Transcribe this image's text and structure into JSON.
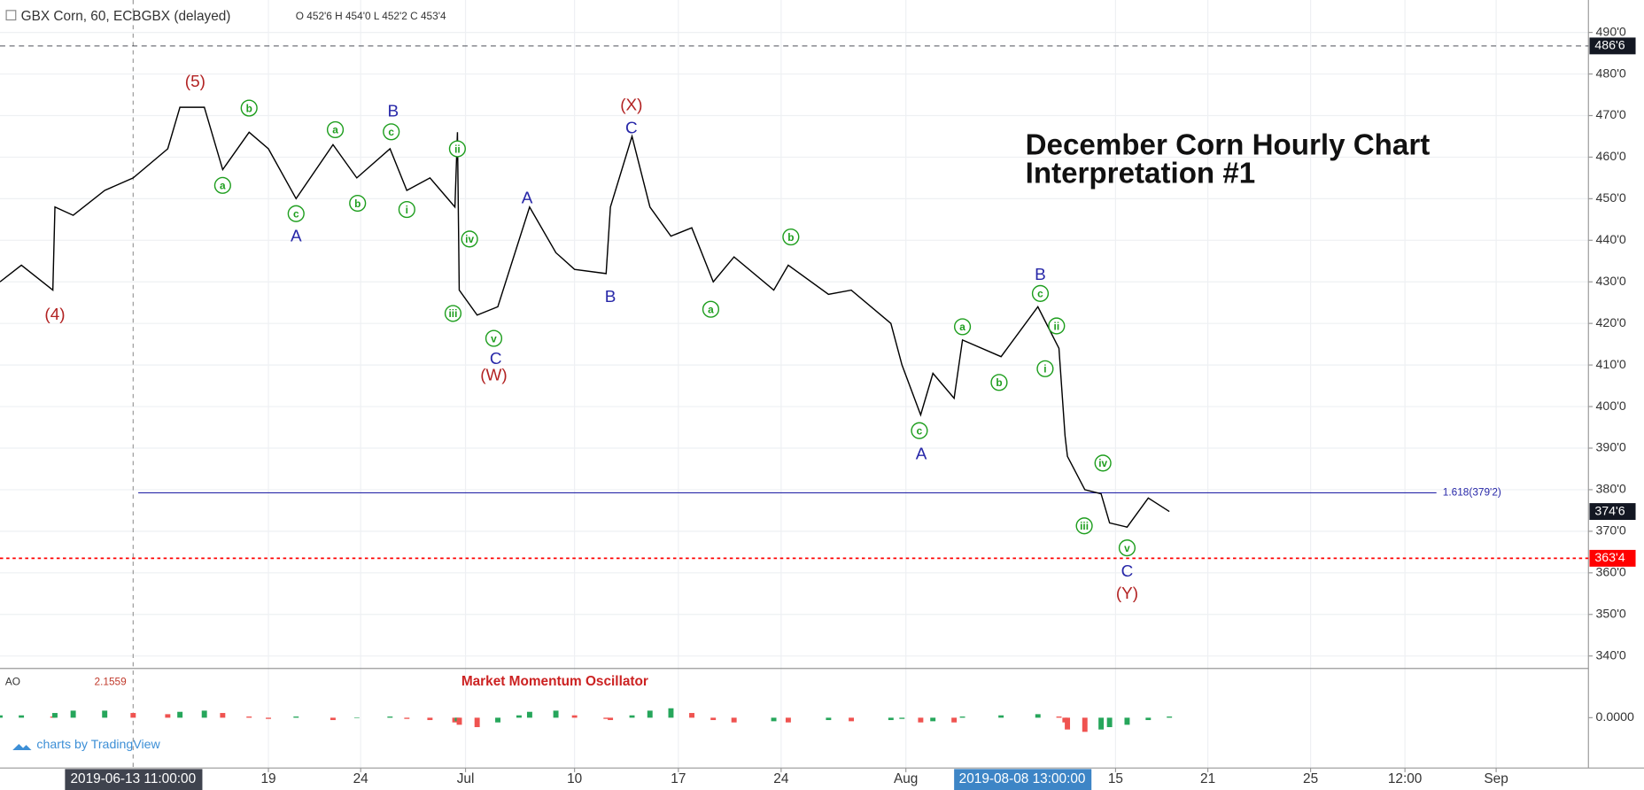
{
  "header": {
    "symbol": "GBX Corn, 60, ECBGBX (delayed)",
    "ohlc": "O 452'6 H 454'0 L 452'2 C 453'4"
  },
  "chart_data": [
    {
      "type": "line",
      "title": "December Corn Hourly Chart",
      "subtitle": "Interpretation #1",
      "color": "#000000",
      "x": [
        "2019-06-08 00:00",
        "2019-06-08 21:00",
        "2019-06-10 04:00",
        "2019-06-10 06:00",
        "2019-06-11 00:00",
        "2019-06-12 07:00",
        "2019-06-13 11:00",
        "2019-06-14 21:00",
        "2019-06-15 09:00",
        "2019-06-16 09:00",
        "2019-06-17 03:00",
        "2019-06-18 05:00",
        "2019-06-19 00:00",
        "2019-06-20 12:00",
        "2019-06-22 12:00",
        "2019-06-23 19:00",
        "2019-06-25 23:00",
        "2019-06-27 02:00",
        "2019-06-28 15:00",
        "2019-06-30 07:00",
        "2019-06-30 11:00",
        "2019-06-30 14:00",
        "2019-07-01 23:00",
        "2019-07-03 16:00",
        "2019-07-05 10:00",
        "2019-07-06 07:00",
        "2019-07-08 11:00",
        "2019-07-10 00:00",
        "2019-07-12 03:00",
        "2019-07-12 10:00",
        "2019-07-13 21:00",
        "2019-07-15 02:00",
        "2019-07-16 12:00",
        "2019-07-17 22:00",
        "2019-07-19 09:00",
        "2019-07-20 19:00",
        "2019-07-23 12:00",
        "2019-07-24 11:00",
        "2019-07-27 01:00",
        "2019-07-28 12:00",
        "2019-07-31 01:00",
        "2019-07-31 18:00",
        "2019-08-01 23:00",
        "2019-08-02 18:00",
        "2019-08-04 03:00",
        "2019-08-04 16:00",
        "2019-08-07 04:00",
        "2019-08-09 15:00",
        "2019-08-11 02:00",
        "2019-08-11 12:00",
        "2019-08-11 16:00",
        "2019-08-12 21:00",
        "2019-08-14 00:00",
        "2019-08-14 14:00",
        "2019-08-15 18:00",
        "2019-08-17 03:00",
        "2019-08-18 12:00"
      ],
      "values": [
        430,
        434,
        428,
        448,
        446,
        452,
        455,
        462,
        472,
        472,
        457,
        466,
        462,
        450,
        463,
        455,
        462,
        452,
        455,
        448,
        466,
        428,
        422,
        424,
        440,
        448,
        437,
        433,
        432,
        448,
        465,
        448,
        441,
        443,
        430,
        436,
        428,
        434,
        427,
        428,
        420,
        410,
        398,
        408,
        402,
        416,
        412,
        424,
        414,
        393,
        388,
        380,
        379,
        372,
        371,
        378,
        374.75
      ],
      "last_value_label": "374'6",
      "xlim": [
        "2019-06-08 00:00",
        "2019-09-04 13:00"
      ],
      "xticks": [
        {
          "value": "2019-06-19 00:00",
          "label": "19"
        },
        {
          "value": "2019-06-24 00:00",
          "label": "24"
        },
        {
          "value": "2019-07-01 00:00",
          "label": "Jul"
        },
        {
          "value": "2019-07-10 00:00",
          "label": "10"
        },
        {
          "value": "2019-07-17 00:00",
          "label": "17"
        },
        {
          "value": "2019-07-24 00:00",
          "label": "24"
        },
        {
          "value": "2019-08-01 00:00",
          "label": "Aug"
        },
        {
          "value": "2019-08-15 00:00",
          "label": "15"
        },
        {
          "value": "2019-08-21 00:00",
          "label": "21"
        },
        {
          "value": "2019-08-25 00:00",
          "label": "25"
        },
        {
          "value": "2019-08-28 12:00",
          "label": "12:00"
        },
        {
          "value": "2019-09-01 00:00",
          "label": "Sep"
        }
      ],
      "crosshair_x": "2019-06-13 11:00:00",
      "cursor_x": "2019-08-08 13:00:00",
      "ylim": [
        337.5,
        497.8
      ],
      "yticks": [
        {
          "value": 340,
          "label": "340'0"
        },
        {
          "value": 350,
          "label": "350'0"
        },
        {
          "value": 360,
          "label": "360'0"
        },
        {
          "value": 370,
          "label": "370'0"
        },
        {
          "value": 380,
          "label": "380'0"
        },
        {
          "value": 390,
          "label": "390'0"
        },
        {
          "value": 400,
          "label": "400'0"
        },
        {
          "value": 410,
          "label": "410'0"
        },
        {
          "value": 420,
          "label": "420'0"
        },
        {
          "value": 430,
          "label": "430'0"
        },
        {
          "value": 440,
          "label": "440'0"
        },
        {
          "value": 450,
          "label": "450'0"
        },
        {
          "value": 460,
          "label": "460'0"
        },
        {
          "value": 470,
          "label": "470'0"
        },
        {
          "value": 480,
          "label": "480'0"
        },
        {
          "value": 490,
          "label": "490'0"
        }
      ],
      "grid": true,
      "levels": [
        {
          "value": 486.75,
          "label": "486'6",
          "color": "#131722"
        },
        {
          "value": 363.5,
          "label": "363'4",
          "color": "#ff0000"
        }
      ],
      "fib_line": {
        "label": "1.618(379'2)",
        "value": 379.25,
        "x": [
          "2019-06-13 16:00",
          "2019-08-29 17:00"
        ],
        "color": "#2727a8"
      },
      "annotations": [
        {
          "text": "(5)",
          "x": "2019-06-16 00:00",
          "y": 478.2,
          "color": "#b22222"
        },
        {
          "text": "(4)",
          "x": "2019-06-10 06:00",
          "y": 422.2,
          "color": "#b22222"
        },
        {
          "text": "b",
          "x": "2019-06-18 05:00",
          "y": 471.8,
          "color": "#1e9e1e",
          "circled": true
        },
        {
          "text": "a",
          "x": "2019-06-17 03:00",
          "y": 453.2,
          "color": "#1e9e1e",
          "circled": true
        },
        {
          "text": "c",
          "x": "2019-06-20 12:00",
          "y": 446.4,
          "color": "#1e9e1e",
          "circled": true
        },
        {
          "text": "A",
          "x": "2019-06-20 12:00",
          "y": 441.1,
          "color": "#2727a8"
        },
        {
          "text": "a",
          "x": "2019-06-22 15:00",
          "y": 466.6,
          "color": "#1e9e1e",
          "circled": true
        },
        {
          "text": "B",
          "x": "2019-06-26 04:00",
          "y": 471.1,
          "color": "#2727a8"
        },
        {
          "text": "c",
          "x": "2019-06-26 01:00",
          "y": 466.1,
          "color": "#1e9e1e",
          "circled": true
        },
        {
          "text": "b",
          "x": "2019-06-23 20:00",
          "y": 448.9,
          "color": "#1e9e1e",
          "circled": true
        },
        {
          "text": "i",
          "x": "2019-06-27 02:00",
          "y": 447.4,
          "color": "#1e9e1e",
          "circled": true
        },
        {
          "text": "ii",
          "x": "2019-06-30 11:00",
          "y": 462.0,
          "color": "#1e9e1e",
          "circled": true
        },
        {
          "text": "iv",
          "x": "2019-07-01 08:00",
          "y": 440.3,
          "color": "#1e9e1e",
          "circled": true
        },
        {
          "text": "iii",
          "x": "2019-06-30 04:00",
          "y": 422.4,
          "color": "#1e9e1e",
          "circled": true
        },
        {
          "text": "v",
          "x": "2019-07-03 08:00",
          "y": 416.4,
          "color": "#1e9e1e",
          "circled": true
        },
        {
          "text": "C",
          "x": "2019-07-03 12:00",
          "y": 411.6,
          "color": "#2727a8"
        },
        {
          "text": "(W)",
          "x": "2019-07-03 08:00",
          "y": 407.6,
          "color": "#b22222"
        },
        {
          "text": "A",
          "x": "2019-07-06 02:00",
          "y": 450.2,
          "color": "#2727a8"
        },
        {
          "text": "B",
          "x": "2019-07-12 10:00",
          "y": 426.5,
          "color": "#2727a8"
        },
        {
          "text": "(X)",
          "x": "2019-07-13 20:00",
          "y": 472.6,
          "color": "#b22222"
        },
        {
          "text": "C",
          "x": "2019-07-13 20:00",
          "y": 467.1,
          "color": "#2727a8"
        },
        {
          "text": "b",
          "x": "2019-07-24 15:00",
          "y": 440.8,
          "color": "#1e9e1e",
          "circled": true
        },
        {
          "text": "a",
          "x": "2019-07-19 05:00",
          "y": 423.4,
          "color": "#1e9e1e",
          "circled": true
        },
        {
          "text": "c",
          "x": "2019-08-01 21:00",
          "y": 394.2,
          "color": "#1e9e1e",
          "circled": true
        },
        {
          "text": "A",
          "x": "2019-08-02 00:00",
          "y": 388.7,
          "color": "#2727a8"
        },
        {
          "text": "a",
          "x": "2019-08-04 16:00",
          "y": 419.2,
          "color": "#1e9e1e",
          "circled": true
        },
        {
          "text": "b",
          "x": "2019-08-07 01:00",
          "y": 405.8,
          "color": "#1e9e1e",
          "circled": true
        },
        {
          "text": "B",
          "x": "2019-08-09 19:00",
          "y": 431.8,
          "color": "#2727a8"
        },
        {
          "text": "c",
          "x": "2019-08-09 19:00",
          "y": 427.2,
          "color": "#1e9e1e",
          "circled": true
        },
        {
          "text": "ii",
          "x": "2019-08-10 22:00",
          "y": 419.4,
          "color": "#1e9e1e",
          "circled": true
        },
        {
          "text": "i",
          "x": "2019-08-10 03:00",
          "y": 409.1,
          "color": "#1e9e1e",
          "circled": true
        },
        {
          "text": "iv",
          "x": "2019-08-14 03:00",
          "y": 386.4,
          "color": "#1e9e1e",
          "circled": true
        },
        {
          "text": "iii",
          "x": "2019-08-12 20:00",
          "y": 371.3,
          "color": "#1e9e1e",
          "circled": true
        },
        {
          "text": "v",
          "x": "2019-08-15 18:00",
          "y": 366.0,
          "color": "#1e9e1e",
          "circled": true
        },
        {
          "text": "C",
          "x": "2019-08-15 18:00",
          "y": 360.4,
          "color": "#2727a8"
        },
        {
          "text": "(Y)",
          "x": "2019-08-15 18:00",
          "y": 355.1,
          "color": "#b22222"
        }
      ]
    },
    {
      "type": "bar",
      "title": "Market Momentum Oscillator",
      "name": "AO",
      "value_label": "2.1559",
      "values": [
        1,
        1,
        0.5,
        2,
        3,
        3,
        2,
        1.5,
        2.5,
        3,
        2,
        0.5,
        -0.5,
        0.5,
        -1,
        0,
        0.5,
        -0.5,
        -1,
        -2,
        -1.5,
        -3,
        -4,
        -2,
        1,
        2.5,
        3,
        1,
        -0.5,
        -1,
        1,
        3,
        4,
        2,
        -1,
        -2,
        -1.5,
        -2,
        -1,
        -1.5,
        -1,
        -0.5,
        -2,
        -1.5,
        -2,
        0.5,
        1,
        1.5,
        0.5,
        -2,
        -5,
        -6,
        -5,
        -4,
        -3,
        -1,
        0.5
      ],
      "ylim": [
        -20,
        20
      ],
      "yticks": [
        {
          "value": 0,
          "label": "0.0000"
        }
      ],
      "colors": {
        "up": "#26a65b",
        "down": "#ef5350"
      },
      "credit": "charts by TradingView"
    }
  ]
}
